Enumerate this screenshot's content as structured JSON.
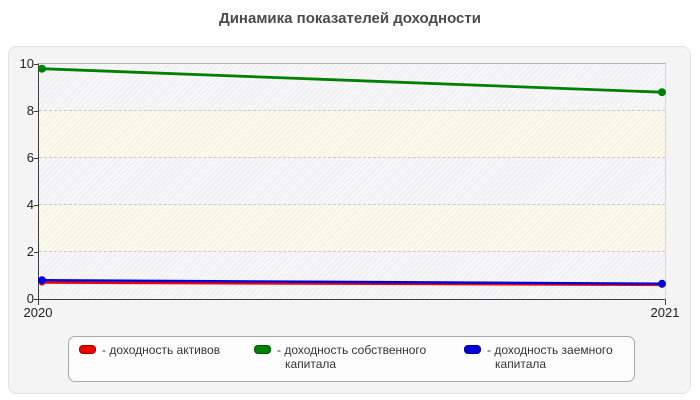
{
  "title": "Динамика показателей доходности",
  "chart": {
    "y_ticks": [
      "10",
      "8",
      "6",
      "4",
      "2",
      "0"
    ],
    "x_ticks": [
      "2020",
      "2021"
    ]
  },
  "legend": {
    "items": [
      {
        "label": "- доходность активов",
        "color": "#ee0000"
      },
      {
        "label": "- доходность собственного капитала",
        "color": "#008000"
      },
      {
        "label": "- доходность заемного капитала",
        "color": "#0000dd"
      }
    ]
  },
  "chart_data": {
    "type": "line",
    "title": "Динамика показателей доходности",
    "x": [
      2020,
      2021
    ],
    "series": [
      {
        "name": "доходность активов",
        "color": "#ee0000",
        "values": [
          0.7,
          0.6
        ],
        "width": 2.4,
        "markers": true,
        "marker_r": 3
      },
      {
        "name": "доходность собственного капитала",
        "color": "#008000",
        "values": [
          9.8,
          8.8
        ],
        "width": 2.8,
        "markers": true,
        "marker_r": 4
      },
      {
        "name": "доходность заемного капитала",
        "color": "#0000dd",
        "values": [
          0.8,
          0.65
        ],
        "width": 2.4,
        "markers": true,
        "marker_r": 4
      }
    ],
    "xlabel": "",
    "ylabel": "",
    "ylim": [
      0,
      10
    ],
    "yticks": [
      0,
      2,
      4,
      6,
      8,
      10
    ],
    "grid": "horizontal-dashed",
    "plot_bands": "alternating horizontal stripes with diagonal hatch",
    "legend_position": "bottom"
  }
}
